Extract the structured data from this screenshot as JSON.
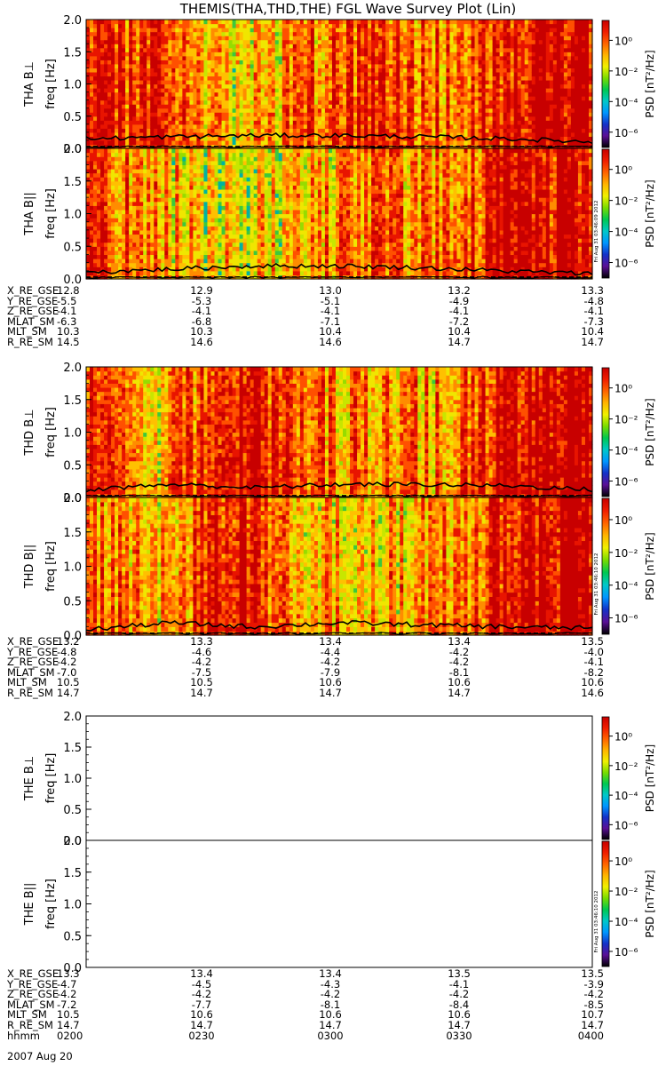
{
  "title": "THEMIS(THA,THD,THE) FGL Wave Survey Plot (Lin)",
  "colorbar": {
    "label": "PSD [nT²/Hz]",
    "tick_labels": [
      "10⁰",
      "10⁻²",
      "10⁻⁴",
      "10⁻⁶"
    ],
    "tick_exponents": [
      0,
      -2,
      -4,
      -6
    ],
    "range_exponents": [
      -7,
      1.3
    ],
    "colors": [
      "#000000",
      "#5a0f96",
      "#1432c8",
      "#0096ff",
      "#00c8c8",
      "#00c850",
      "#78dc00",
      "#f0f000",
      "#ffb400",
      "#ff6400",
      "#f01e00",
      "#c80000"
    ]
  },
  "freq_axis": {
    "label": "freq [Hz]",
    "tick_labels": [
      "0.0",
      "0.5",
      "1.0",
      "1.5",
      "2.0"
    ],
    "range": [
      0,
      2
    ]
  },
  "stamps": [
    "Fri Aug 31 03:46:09 2012",
    "Fri Aug 31 03:46:10 2012",
    "Fri Aug 31 03:46:10 2012"
  ],
  "panels": [
    {
      "ylabel": "THA B⊥",
      "has_data": true
    },
    {
      "ylabel": "THA B||",
      "has_data": true
    },
    {
      "ylabel": "THD B⊥",
      "has_data": true
    },
    {
      "ylabel": "THD B||",
      "has_data": true
    },
    {
      "ylabel": "THE B⊥",
      "has_data": false
    },
    {
      "ylabel": "THE B||",
      "has_data": false
    }
  ],
  "ephemeris": [
    {
      "rows": [
        {
          "label": "X_RE_GSE",
          "values": [
            "12.8",
            "12.9",
            "13.0",
            "13.2",
            "13.3"
          ]
        },
        {
          "label": "Y_RE_GSE",
          "values": [
            "-5.5",
            "-5.3",
            "-5.1",
            "-4.9",
            "-4.8"
          ]
        },
        {
          "label": "Z_RE_GSE",
          "values": [
            "-4.1",
            "-4.1",
            "-4.1",
            "-4.1",
            "-4.1"
          ]
        },
        {
          "label": "MLAT_SM",
          "values": [
            "-6.3",
            "-6.8",
            "-7.1",
            "-7.2",
            "-7.3"
          ]
        },
        {
          "label": "MLT_SM",
          "values": [
            "10.3",
            "10.3",
            "10.4",
            "10.4",
            "10.4"
          ]
        },
        {
          "label": "R_RE_SM",
          "values": [
            "14.5",
            "14.6",
            "14.6",
            "14.7",
            "14.7"
          ]
        }
      ]
    },
    {
      "rows": [
        {
          "label": "X_RE_GSE",
          "values": [
            "13.2",
            "13.3",
            "13.4",
            "13.4",
            "13.5"
          ]
        },
        {
          "label": "Y_RE_GSE",
          "values": [
            "-4.8",
            "-4.6",
            "-4.4",
            "-4.2",
            "-4.0"
          ]
        },
        {
          "label": "Z_RE_GSE",
          "values": [
            "-4.2",
            "-4.2",
            "-4.2",
            "-4.2",
            "-4.1"
          ]
        },
        {
          "label": "MLAT_SM",
          "values": [
            "-7.0",
            "-7.5",
            "-7.9",
            "-8.1",
            "-8.2"
          ]
        },
        {
          "label": "MLT_SM",
          "values": [
            "10.5",
            "10.5",
            "10.6",
            "10.6",
            "10.6"
          ]
        },
        {
          "label": "R_RE_SM",
          "values": [
            "14.7",
            "14.7",
            "14.7",
            "14.7",
            "14.6"
          ]
        }
      ]
    },
    {
      "rows": [
        {
          "label": "X_RE_GSE",
          "values": [
            "13.3",
            "13.4",
            "13.4",
            "13.5",
            "13.5"
          ]
        },
        {
          "label": "Y_RE_GSE",
          "values": [
            "-4.7",
            "-4.5",
            "-4.3",
            "-4.1",
            "-3.9"
          ]
        },
        {
          "label": "Z_RE_GSE",
          "values": [
            "-4.2",
            "-4.2",
            "-4.2",
            "-4.2",
            "-4.2"
          ]
        },
        {
          "label": "MLAT_SM",
          "values": [
            "-7.2",
            "-7.7",
            "-8.1",
            "-8.4",
            "-8.5"
          ]
        },
        {
          "label": "MLT_SM",
          "values": [
            "10.5",
            "10.6",
            "10.6",
            "10.6",
            "10.7"
          ]
        },
        {
          "label": "R_RE_SM",
          "values": [
            "14.7",
            "14.7",
            "14.7",
            "14.7",
            "14.7"
          ]
        },
        {
          "label": "hhmm",
          "values": [
            "0200",
            "0230",
            "0300",
            "0330",
            "0400"
          ]
        }
      ]
    }
  ],
  "date_label": "2007 Aug 20",
  "chart_data": {
    "type": "heatmap",
    "title": "THEMIS(THA,THD,THE) FGL Wave Survey Plot (Lin)",
    "x_time_ticks": [
      "0200",
      "0230",
      "0300",
      "0330",
      "0400"
    ],
    "date": "2007 Aug 20",
    "ylim": [
      0,
      2.0
    ],
    "ylabel": "freq [Hz]",
    "zlabel": "PSD [nT²/Hz]",
    "zscale": "log",
    "grid": false,
    "legend": "colorbar right",
    "series": [
      {
        "name": "THA B⊥",
        "line_level": [
          0.15,
          0.18,
          0.2,
          0.2,
          0.18,
          0.15,
          0.1
        ],
        "line_times": [
          "0200",
          "0220",
          "0240",
          "0300",
          "0320",
          "0340",
          "0400"
        ],
        "column_intensity": [
          0.75,
          0.65,
          0.35,
          0.55,
          0.7,
          0.6,
          0.85,
          0.9
        ]
      },
      {
        "name": "THA B||",
        "line_level": [
          0.1,
          0.15,
          0.2,
          0.2,
          0.17,
          0.12,
          0.08
        ],
        "line_times": [
          "0200",
          "0220",
          "0240",
          "0300",
          "0320",
          "0340",
          "0400"
        ],
        "column_intensity": [
          0.7,
          0.5,
          0.3,
          0.45,
          0.6,
          0.55,
          0.85,
          0.85
        ]
      },
      {
        "name": "THD B⊥",
        "line_level": [
          0.12,
          0.2,
          0.15,
          0.2,
          0.2,
          0.18,
          0.12
        ],
        "line_times": [
          "0200",
          "0220",
          "0240",
          "0300",
          "0320",
          "0340",
          "0400"
        ],
        "column_intensity": [
          0.8,
          0.45,
          0.9,
          0.6,
          0.5,
          0.55,
          0.9,
          0.95
        ]
      },
      {
        "name": "THD B||",
        "line_level": [
          0.08,
          0.18,
          0.12,
          0.18,
          0.15,
          0.12,
          0.1
        ],
        "line_times": [
          "0200",
          "0220",
          "0240",
          "0300",
          "0320",
          "0340",
          "0400"
        ],
        "column_intensity": [
          0.65,
          0.4,
          0.85,
          0.5,
          0.45,
          0.5,
          0.85,
          0.9
        ]
      },
      {
        "name": "THE B⊥",
        "line_level": [],
        "line_times": [],
        "column_intensity": []
      },
      {
        "name": "THE B||",
        "line_level": [],
        "line_times": [],
        "column_intensity": []
      }
    ]
  }
}
